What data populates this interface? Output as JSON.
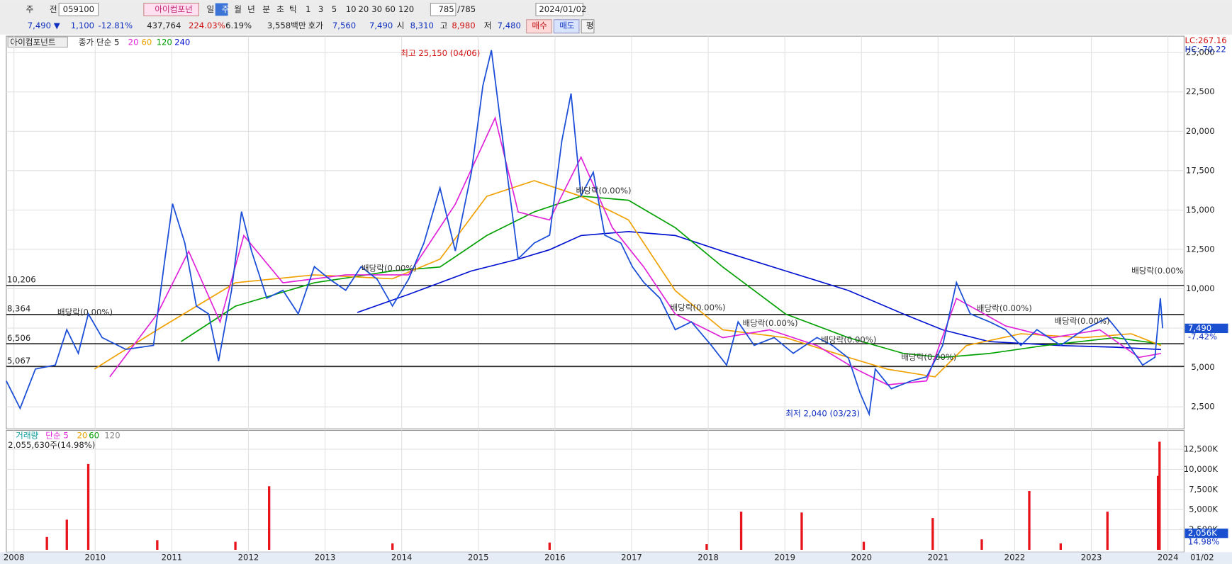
{
  "toolbar": {
    "row1": [
      "주",
      "전",
      "059100",
      "아이컴포넌",
      "일",
      "주",
      "월",
      "년",
      "분",
      "초",
      "틱",
      "1",
      "3",
      "5",
      "10",
      "20",
      "30",
      "60",
      "120",
      "785",
      "/785",
      "2024/01/02"
    ],
    "row2": [
      "7,490 ▼",
      "1,100",
      "-12.81%",
      "437,764",
      "224.03%",
      "6.19%",
      "3,558백만",
      "호가",
      "7,560",
      "7,490",
      "시",
      "8,310",
      "고",
      "8,980",
      "저",
      "7,480",
      "매수",
      "매도",
      "평"
    ]
  },
  "chart_data": [
    {
      "type": "line",
      "title": "아이컴포넌트",
      "xlim": [
        2008.84,
        2024.21
      ],
      "xticks": [
        {
          "value": 2008.94,
          "label": "2008"
        },
        2010,
        2011,
        2012,
        2013,
        2014,
        2015,
        2016,
        2017,
        2018,
        2019,
        2020,
        2021,
        2022,
        2023,
        2024
      ],
      "date_label": "01/02",
      "ylim": [
        1100,
        26040
      ],
      "yticks": [
        {
          "value": 2500,
          "label": "2,500"
        },
        {
          "value": 5000,
          "label": "5,000"
        },
        {
          "value": 7500,
          "label": "7,500"
        },
        {
          "value": 10000,
          "label": "10,000"
        },
        {
          "value": 12500,
          "label": "12,500"
        },
        {
          "value": 15000,
          "label": "15,000"
        },
        {
          "value": 17500,
          "label": "17,500"
        },
        {
          "value": 20000,
          "label": "20,000"
        },
        {
          "value": 22500,
          "label": "22,500"
        },
        {
          "value": 25000,
          "label": "25,000"
        }
      ],
      "grid": true,
      "series": [
        {
          "name": "종가 단순 5",
          "color": "#1c4fd8",
          "x": [
            2008.84,
            2009.02,
            2009.22,
            2009.48,
            2009.63,
            2009.78,
            2009.91,
            2010.09,
            2010.4,
            2010.76,
            2010.91,
            2011.01,
            2011.17,
            2011.32,
            2011.48,
            2011.61,
            2011.78,
            2011.91,
            2012.04,
            2012.24,
            2012.45,
            2012.65,
            2012.86,
            2013.06,
            2013.27,
            2013.47,
            2013.68,
            2013.88,
            2014.09,
            2014.29,
            2014.5,
            2014.7,
            2014.91,
            2015.06,
            2015.17,
            2015.32,
            2015.52,
            2015.73,
            2015.93,
            2016.09,
            2016.21,
            2016.34,
            2016.5,
            2016.65,
            2016.86,
            2017.01,
            2017.16,
            2017.37,
            2017.57,
            2017.78,
            2018.04,
            2018.24,
            2018.39,
            2018.6,
            2018.86,
            2019.11,
            2019.42,
            2019.62,
            2019.83,
            2019.98,
            2020.1,
            2020.18,
            2020.39,
            2020.65,
            2020.85,
            2021.06,
            2021.24,
            2021.42,
            2021.67,
            2021.88,
            2022.08,
            2022.29,
            2022.6,
            2022.9,
            2023.21,
            2023.42,
            2023.67,
            2023.83,
            2023.9,
            2023.93
          ],
          "values": [
            4150,
            2400,
            4900,
            5150,
            7400,
            5900,
            8400,
            6900,
            6150,
            6400,
            11900,
            15400,
            12900,
            8900,
            8400,
            5400,
            9900,
            14900,
            12400,
            9400,
            9900,
            8400,
            11400,
            10600,
            9900,
            11400,
            10600,
            8900,
            10600,
            12900,
            16400,
            12400,
            17400,
            22900,
            25150,
            19400,
            11900,
            12900,
            13400,
            19400,
            22400,
            15900,
            17400,
            13400,
            12900,
            11400,
            10400,
            9400,
            7400,
            7900,
            6400,
            5150,
            7900,
            6400,
            6900,
            5900,
            6900,
            6400,
            5600,
            3400,
            2040,
            4900,
            3650,
            4150,
            4400,
            6400,
            10400,
            8400,
            7900,
            7400,
            6400,
            7400,
            6400,
            7400,
            8150,
            6900,
            5150,
            5650,
            9400,
            7490
          ]
        },
        {
          "name": "20",
          "color": "#e020d8",
          "x": [
            2010.19,
            2010.81,
            2011.22,
            2011.63,
            2011.94,
            2012.45,
            2013.27,
            2014.09,
            2014.7,
            2015.22,
            2015.52,
            2015.93,
            2016.34,
            2016.75,
            2017.16,
            2017.57,
            2018.19,
            2018.8,
            2019.42,
            2019.93,
            2020.34,
            2020.85,
            2021.24,
            2021.88,
            2022.49,
            2023.11,
            2023.62,
            2023.91
          ],
          "values": [
            4400,
            8390,
            12380,
            7890,
            13380,
            10380,
            10880,
            10880,
            15370,
            20850,
            14870,
            14370,
            18360,
            13880,
            11380,
            8390,
            6890,
            7390,
            6390,
            4890,
            3900,
            4150,
            9380,
            7640,
            6890,
            7390,
            5640,
            5890
          ]
        },
        {
          "name": "60",
          "color": "#f0a000",
          "x": [
            2009.99,
            2010.81,
            2011.83,
            2012.86,
            2013.88,
            2014.5,
            2015.11,
            2015.73,
            2016.34,
            2016.96,
            2017.57,
            2018.19,
            2019.01,
            2019.83,
            2020.34,
            2020.96,
            2021.37,
            2022.08,
            2022.9,
            2023.52,
            2023.91
          ],
          "values": [
            4900,
            7390,
            10380,
            10880,
            10630,
            11880,
            15870,
            16860,
            15870,
            14370,
            9880,
            7390,
            6890,
            5640,
            4890,
            4400,
            6390,
            7140,
            6890,
            7140,
            6390
          ]
        },
        {
          "name": "120",
          "color": "#00a000",
          "x": [
            2011.12,
            2011.83,
            2012.86,
            2013.88,
            2014.5,
            2015.11,
            2015.73,
            2016.34,
            2016.96,
            2017.57,
            2018.19,
            2019.01,
            2019.83,
            2020.55,
            2021.06,
            2021.67,
            2022.39,
            2023.31,
            2023.91
          ],
          "values": [
            6640,
            8890,
            10380,
            11130,
            11380,
            13380,
            14880,
            15880,
            15620,
            13880,
            11380,
            8390,
            6890,
            5890,
            5640,
            5890,
            6390,
            6890,
            6490
          ]
        },
        {
          "name": "240",
          "color": "#0010d0",
          "x": [
            2013.42,
            2014.09,
            2014.91,
            2015.52,
            2015.93,
            2016.34,
            2016.96,
            2017.57,
            2018.19,
            2019.01,
            2019.83,
            2020.55,
            2021.06,
            2021.67,
            2022.6,
            2023.31,
            2023.91
          ],
          "values": [
            8490,
            9640,
            11130,
            11880,
            12480,
            13380,
            13630,
            13380,
            12380,
            11130,
            9890,
            8390,
            7390,
            6640,
            6390,
            6290,
            6140
          ]
        }
      ],
      "levels": [
        {
          "value": 10206,
          "label": "10,206"
        },
        {
          "value": 8364,
          "label": "8,364"
        },
        {
          "value": 6506,
          "label": "6,506"
        },
        {
          "value": 5067,
          "label": "5,067"
        }
      ],
      "annotations": [
        "최고 25,150 (04/06)",
        "최저 2,040 (03/23)",
        "배당락(0.00%)",
        "배당락(0.00%)",
        "배당락(0.00%)",
        "배당락(0.00%)",
        "배당락(0.00%)",
        "배당락(0.00%)",
        "배당락(0.00%)",
        "배당락(0.00%)",
        "배당락(0.00%)",
        "배당락(0.00%"
      ],
      "right_labels": [
        "LC:267.16",
        "HC:-70.22",
        "7,490",
        "-7.42%"
      ]
    },
    {
      "type": "bar",
      "title": "거래량",
      "ma_labels": [
        {
          "label": "단순 5",
          "color": "#e020d8"
        },
        {
          "label": "20",
          "color": "#f0a000"
        },
        {
          "label": "60",
          "color": "#00a000"
        },
        {
          "label": "120",
          "color": "#888888"
        }
      ],
      "subtitle": "2,055,630주(14.98%)",
      "ylim": [
        0,
        14900
      ],
      "yticks": [
        {
          "value": 2500,
          "label": "2,500K"
        },
        {
          "value": 5000,
          "label": "5,000K"
        },
        {
          "value": 7500,
          "label": "7,500K"
        },
        {
          "value": 10000,
          "label": "10,000K"
        },
        {
          "value": 12500,
          "label": "12,500K"
        }
      ],
      "series": [
        {
          "name": "거래량",
          "color": "#e8141c",
          "x": [
            2009.37,
            2009.63,
            2009.91,
            2010.81,
            2011.83,
            2012.27,
            2013.88,
            2015.93,
            2017.98,
            2018.43,
            2019.22,
            2020.03,
            2020.93,
            2021.57,
            2022.19,
            2022.6,
            2023.21,
            2023.87,
            2023.89
          ],
          "values": [
            1600,
            3750,
            10670,
            1200,
            1000,
            7900,
            800,
            900,
            700,
            4740,
            4640,
            1000,
            3950,
            1300,
            7310,
            800,
            4740,
            9190,
            13440
          ]
        }
      ],
      "right_labels": [
        "2,056K",
        "14.98%"
      ]
    }
  ]
}
